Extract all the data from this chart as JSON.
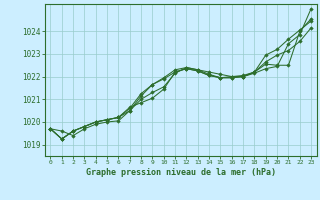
{
  "background_color": "#cceeff",
  "plot_bg_color": "#cceeff",
  "grid_color": "#99cccc",
  "line_color": "#2d6e2d",
  "spine_color": "#2d6e2d",
  "title": "Graphe pression niveau de la mer (hPa)",
  "xlim": [
    -0.5,
    23.5
  ],
  "ylim": [
    1018.5,
    1025.2
  ],
  "yticks": [
    1019,
    1020,
    1021,
    1022,
    1023,
    1024
  ],
  "xticks": [
    0,
    1,
    2,
    3,
    4,
    5,
    6,
    7,
    8,
    9,
    10,
    11,
    12,
    13,
    14,
    15,
    16,
    17,
    18,
    19,
    20,
    21,
    22,
    23
  ],
  "series": [
    [
      1019.7,
      1019.6,
      1019.4,
      1019.7,
      1019.9,
      1020.0,
      1020.05,
      1020.5,
      1021.0,
      1021.3,
      1021.55,
      1022.15,
      1022.4,
      1022.3,
      1022.2,
      1022.1,
      1022.0,
      1022.05,
      1022.2,
      1022.95,
      1023.2,
      1023.65,
      1024.05,
      1024.45
    ],
    [
      1019.7,
      1019.25,
      1019.6,
      1019.8,
      1020.0,
      1020.1,
      1020.2,
      1020.6,
      1021.25,
      1021.65,
      1021.95,
      1022.3,
      1022.4,
      1022.3,
      1022.1,
      1021.95,
      1022.0,
      1022.0,
      1022.2,
      1022.55,
      1022.5,
      1022.5,
      1024.0,
      1024.55
    ],
    [
      1019.7,
      1019.25,
      1019.6,
      1019.8,
      1020.0,
      1020.1,
      1020.2,
      1020.65,
      1020.85,
      1021.05,
      1021.45,
      1022.2,
      1022.35,
      1022.25,
      1022.05,
      1021.95,
      1021.95,
      1022.0,
      1022.15,
      1022.35,
      1022.45,
      1023.45,
      1023.85,
      1025.0
    ],
    [
      1019.7,
      1019.25,
      1019.6,
      1019.8,
      1020.0,
      1020.1,
      1020.2,
      1020.5,
      1021.15,
      1021.65,
      1021.9,
      1022.2,
      1022.35,
      1022.25,
      1022.05,
      1021.95,
      1021.95,
      1022.0,
      1022.2,
      1022.65,
      1022.95,
      1023.15,
      1023.55,
      1024.15
    ]
  ]
}
